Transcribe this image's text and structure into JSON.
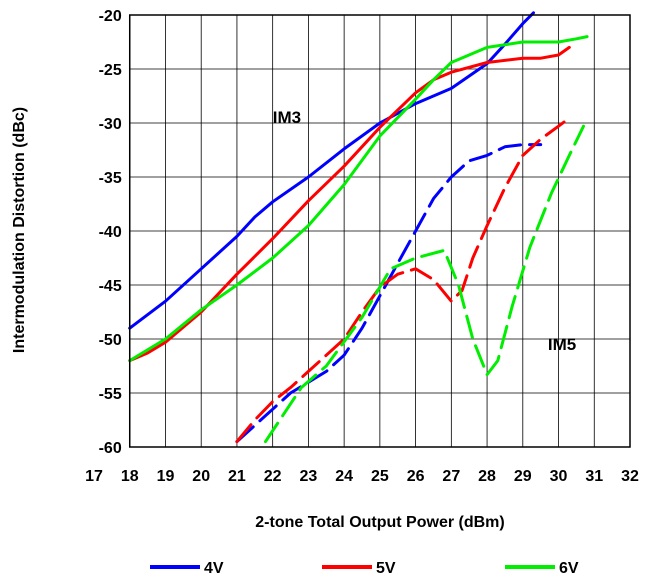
{
  "chart_data": {
    "type": "line",
    "xlabel": "2-tone Total Output Power (dBm)",
    "ylabel": "Intermodulation Distortion (dBc)",
    "xlim": [
      17,
      32
    ],
    "ylim": [
      -60,
      -20
    ],
    "x_ticks": [
      "17",
      "18",
      "19",
      "20",
      "21",
      "22",
      "23",
      "24",
      "25",
      "26",
      "27",
      "28",
      "29",
      "30",
      "31",
      "32"
    ],
    "y_ticks": [
      "-20",
      "-25",
      "-30",
      "-35",
      "-40",
      "-45",
      "-50",
      "-55",
      "-60"
    ],
    "grid": true,
    "legend_position": "bottom",
    "annotations": [
      {
        "text": "IM3",
        "x": 22.4,
        "y": -30
      },
      {
        "text": "IM5",
        "x": 30.1,
        "y": -51
      }
    ],
    "series": [
      {
        "name": "4V",
        "group": "IM3",
        "color": "#0000ff",
        "style": "solid",
        "x": [
          18,
          19,
          20,
          21,
          21.5,
          22,
          23,
          24,
          25,
          26,
          27,
          28,
          28.5,
          29,
          29.3
        ],
        "y": [
          -49,
          -46.5,
          -43.5,
          -40.5,
          -38.7,
          -37.3,
          -35,
          -32.4,
          -30,
          -28.2,
          -26.8,
          -24.5,
          -22.7,
          -20.8,
          -19.8
        ]
      },
      {
        "name": "5V",
        "group": "IM3",
        "color": "#ff0000",
        "style": "solid",
        "x": [
          18,
          18.5,
          19,
          20,
          21,
          22,
          23,
          24,
          25,
          26,
          26.5,
          27,
          28,
          29,
          29.5,
          30,
          30.3
        ],
        "y": [
          -52,
          -51.3,
          -50.3,
          -47.5,
          -44,
          -40.7,
          -37.2,
          -34,
          -30.4,
          -27.2,
          -26,
          -25.3,
          -24.4,
          -24,
          -24,
          -23.7,
          -23
        ]
      },
      {
        "name": "6V",
        "group": "IM3",
        "color": "#00ee00",
        "style": "solid",
        "x": [
          18,
          19,
          20,
          21,
          22,
          23,
          24,
          25,
          26,
          26.5,
          27,
          28,
          29,
          29.5,
          30,
          30.5,
          30.8
        ],
        "y": [
          -52,
          -50,
          -47.3,
          -45,
          -42.5,
          -39.5,
          -35.7,
          -31.2,
          -27.8,
          -26,
          -24.4,
          -23,
          -22.5,
          -22.5,
          -22.5,
          -22.2,
          -22
        ]
      },
      {
        "name": "4V",
        "group": "IM5",
        "color": "#0000ff",
        "style": "dashed",
        "x": [
          21.0,
          21.5,
          22,
          22.5,
          23,
          23.5,
          24,
          24.5,
          25,
          25.5,
          26,
          26.5,
          27,
          27.5,
          28,
          28.5,
          29,
          29.5
        ],
        "y": [
          -59.5,
          -58,
          -56.5,
          -55,
          -54,
          -53,
          -51.5,
          -49,
          -46,
          -43,
          -40,
          -37,
          -35,
          -33.5,
          -33,
          -32.2,
          -32,
          -32
        ]
      },
      {
        "name": "5V",
        "group": "IM5",
        "color": "#ff0000",
        "style": "dashed",
        "x": [
          21.0,
          21.5,
          22,
          22.5,
          23,
          23.5,
          24,
          24.5,
          25,
          25.5,
          26,
          26.5,
          27,
          27.3,
          27.6,
          28,
          28.5,
          29,
          29.5,
          30,
          30.2
        ],
        "y": [
          -59.5,
          -57.5,
          -55.8,
          -54.5,
          -53,
          -51.5,
          -50,
          -47.5,
          -45.2,
          -44,
          -43.5,
          -44.5,
          -46.5,
          -45.5,
          -42.5,
          -39.5,
          -36,
          -33,
          -31.5,
          -30.3,
          -29.8
        ]
      },
      {
        "name": "6V",
        "group": "IM5",
        "color": "#00ee00",
        "style": "dashed",
        "x": [
          21.8,
          22.3,
          22.8,
          23.5,
          24.5,
          25.3,
          26,
          26.8,
          27.2,
          27.6,
          28,
          28.3,
          28.7,
          29.2,
          29.8,
          30.3,
          30.7
        ],
        "y": [
          -59.5,
          -57,
          -54.5,
          -52.5,
          -48,
          -43.5,
          -42.5,
          -41.8,
          -45,
          -50,
          -53.3,
          -52,
          -47,
          -41.5,
          -36.5,
          -33,
          -30.3
        ]
      }
    ],
    "legend": [
      {
        "label": "4V",
        "color": "#0000ff"
      },
      {
        "label": "5V",
        "color": "#ff0000"
      },
      {
        "label": "6V",
        "color": "#00ee00"
      }
    ]
  }
}
